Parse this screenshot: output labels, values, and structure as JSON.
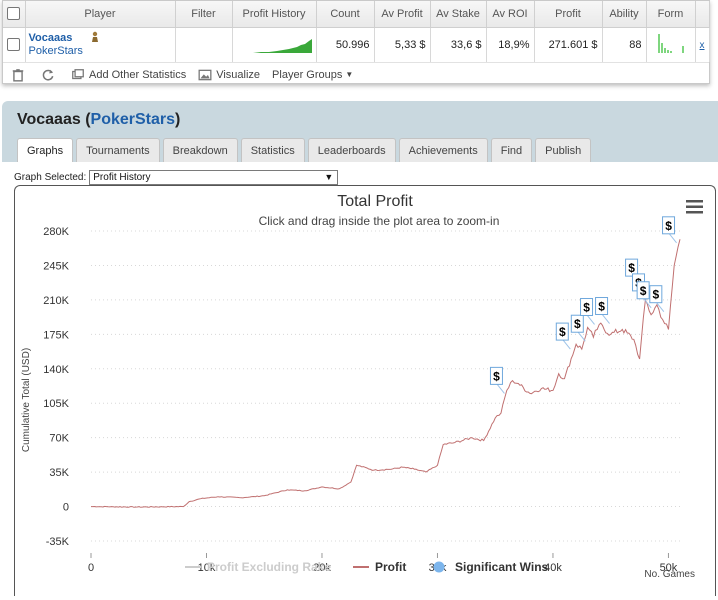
{
  "stats_table": {
    "headers": [
      "Player",
      "Filter",
      "Profit History",
      "Count",
      "Av Profit",
      "Av Stake",
      "Av ROI",
      "Profit",
      "Ability",
      "Form"
    ],
    "row": {
      "player_name": "Vocaaas",
      "site": "PokerStars",
      "filter": "",
      "count": "50.996",
      "av_profit": "5,33 $",
      "av_stake": "33,6 $",
      "av_roi": "18,9%",
      "profit": "271.601 $",
      "ability": "88",
      "remove_label": "x"
    },
    "sparkline_color": "#3aa83a",
    "form_color": "#7fd67f"
  },
  "toolbar": {
    "add_stats": "Add Other Statistics",
    "visualize": "Visualize",
    "player_groups": "Player Groups"
  },
  "player_header": {
    "name": "Vocaaas",
    "site": "PokerStars"
  },
  "tabs": [
    "Graphs",
    "Tournaments",
    "Breakdown",
    "Statistics",
    "Leaderboards",
    "Achievements",
    "Find",
    "Publish"
  ],
  "graph_select": {
    "label": "Graph Selected:",
    "value": "Profit History"
  },
  "chart_data": {
    "type": "line",
    "title": "Total Profit",
    "subtitle": "Click and drag inside the plot area to zoom-in",
    "ylabel": "Cumulative Total (USD)",
    "xlabel": "No. Games",
    "xlim": [
      0,
      51000
    ],
    "ylim": [
      -35000,
      280000
    ],
    "yticks": [
      -35000,
      0,
      35000,
      70000,
      105000,
      140000,
      175000,
      210000,
      245000,
      280000
    ],
    "ytick_labels": [
      "-35K",
      "0",
      "35K",
      "70K",
      "105K",
      "140K",
      "175K",
      "210K",
      "245K",
      "280K"
    ],
    "xticks": [
      0,
      10000,
      20000,
      30000,
      40000,
      50000
    ],
    "xtick_labels": [
      "0",
      "10k",
      "20k",
      "30k",
      "40k",
      "50k"
    ],
    "series": [
      {
        "name": "Profit",
        "color": "#c07070",
        "x": [
          0,
          4000,
          8000,
          8500,
          9500,
          11000,
          13000,
          15000,
          17000,
          18500,
          20000,
          21500,
          22500,
          23000,
          24500,
          26000,
          27000,
          28000,
          29000,
          30000,
          30500,
          31500,
          33000,
          34000,
          35000,
          35500,
          36000,
          36500,
          37000,
          38000,
          39000,
          40000,
          40500,
          41000,
          42000,
          42500,
          43000,
          43500,
          44000,
          45000,
          46000,
          47000,
          47500,
          48000,
          48500,
          49000,
          49500,
          50000,
          50500,
          50996
        ],
        "y": [
          0,
          -500,
          0,
          5000,
          8000,
          10000,
          9000,
          11000,
          17000,
          16000,
          20000,
          18000,
          25000,
          42000,
          37000,
          38000,
          40000,
          38000,
          35000,
          42000,
          63000,
          65000,
          70000,
          67000,
          90000,
          95000,
          118000,
          128000,
          125000,
          115000,
          120000,
          118000,
          135000,
          130000,
          165000,
          160000,
          182000,
          172000,
          185000,
          175000,
          180000,
          170000,
          150000,
          210000,
          195000,
          205000,
          190000,
          180000,
          245000,
          271601
        ]
      }
    ],
    "significant_wins": [
      {
        "x": 35800,
        "y": 115000
      },
      {
        "x": 41500,
        "y": 160000
      },
      {
        "x": 42800,
        "y": 168000
      },
      {
        "x": 43600,
        "y": 185000
      },
      {
        "x": 44900,
        "y": 186000
      },
      {
        "x": 47500,
        "y": 225000
      },
      {
        "x": 48100,
        "y": 210000
      },
      {
        "x": 48500,
        "y": 202000
      },
      {
        "x": 49600,
        "y": 198000
      },
      {
        "x": 50700,
        "y": 268000
      }
    ],
    "legend": [
      {
        "label": "Profit Excluding Rake",
        "color": "#cccccc",
        "state": "hidden"
      },
      {
        "label": "Profit",
        "color": "#c07070"
      },
      {
        "label": "Significant Wins",
        "color": "#7cb5ec"
      }
    ],
    "legend_position": "bottom-center",
    "grid": "horizontal-dotted"
  }
}
